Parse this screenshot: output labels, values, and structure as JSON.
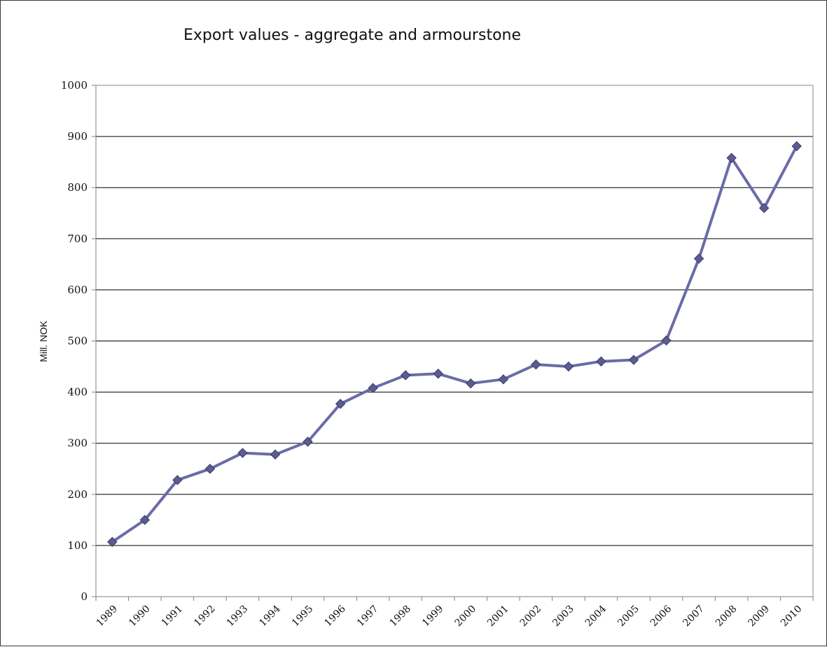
{
  "chart_data": {
    "type": "line",
    "title": "Export values - aggregate and armourstone",
    "xlabel": "",
    "ylabel": "Mill. NOK",
    "ylim": [
      0,
      1000
    ],
    "yticks": [
      "0",
      "100",
      "200",
      "300",
      "400",
      "500",
      "600",
      "700",
      "800",
      "900",
      "1000"
    ],
    "grid": true,
    "categories": [
      "1989",
      "1990",
      "1991",
      "1992",
      "1993",
      "1994",
      "1995",
      "1996",
      "1997",
      "1998",
      "1999",
      "2000",
      "2001",
      "2002",
      "2003",
      "2004",
      "2005",
      "2006",
      "2007",
      "2008",
      "2009",
      "2010"
    ],
    "series": [
      {
        "values": [
          107,
          150,
          228,
          250,
          281,
          278,
          303,
          377,
          408,
          433,
          436,
          417,
          425,
          454,
          450,
          460,
          463,
          501,
          661,
          858,
          760,
          881
        ]
      }
    ],
    "colors": {
      "line": "#6b6ba8",
      "marker": "#5c5c92",
      "marker_edge": "#3a3a64",
      "grid": "#000000",
      "axis": "#7f7f7f"
    }
  }
}
